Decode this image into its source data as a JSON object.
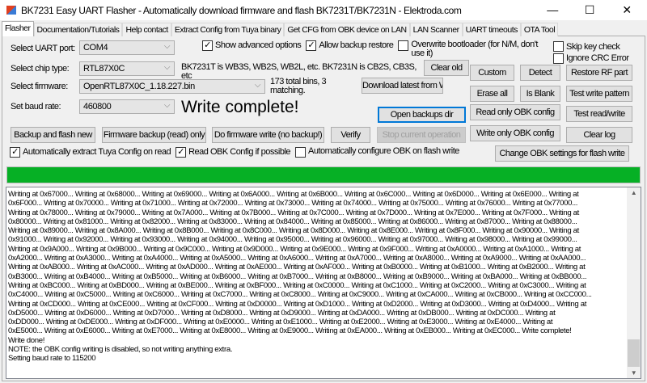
{
  "window": {
    "title": "BK7231 Easy UART Flasher - Automatically download firmware and flash BK7231T/BK7231N  - Elektroda.com",
    "minimize": "—",
    "maximize": "☐",
    "close": "✕"
  },
  "tabs": [
    "Flasher",
    "Documentation/Tutorials",
    "Help contact",
    "Extract Config from Tuya binary",
    "Get CFG from OBK device on LAN",
    "LAN Scanner",
    "UART timeouts",
    "OTA Tool"
  ],
  "form": {
    "uart_label": "Select UART port:",
    "uart_value": "COM4",
    "chip_label": "Select chip type:",
    "chip_value": "RTL87X0C",
    "chip_hint": "BK7231T is WB3S, WB2S, WB2L, etc. BK7231N is CB2S, CB3S, etc",
    "firmware_label": "Select firmware:",
    "firmware_value": "OpenRTL87X0C_1.18.227.bin",
    "bins_info": "173 total bins, 3 matching.",
    "baud_label": "Set baud rate:",
    "baud_value": "460800",
    "status": "Write complete!"
  },
  "options": [
    {
      "label": "Show advanced options",
      "checked": true
    },
    {
      "label": "Allow backup restore",
      "checked": true
    },
    {
      "label": "Overwrite bootloader (for N/M, don't use it)",
      "checked": false
    },
    {
      "label": "Skip key check",
      "checked": false
    },
    {
      "label": "Ignore CRC Error",
      "checked": false
    },
    {
      "label": "Automatically extract Tuya Config on read",
      "checked": true
    },
    {
      "label": "Read OBK Config if possible",
      "checked": true
    },
    {
      "label": "Automatically configure OBK on flash write",
      "checked": false
    }
  ],
  "buttons": {
    "clear_old": "Clear old",
    "download": "Download latest from Web",
    "open_backups": "Open backups dir",
    "custom": "Custom",
    "detect": "Detect",
    "restore_rf": "Restore RF part",
    "erase_all": "Erase all",
    "is_blank": "Is Blank",
    "test_write_pattern": "Test write pattern",
    "read_obk": "Read only OBK config",
    "test_rw": "Test read/write",
    "write_obk": "Write only OBK config",
    "clear_log": "Clear log",
    "backup_flash": "Backup and flash new",
    "fw_backup": "Firmware backup (read) only",
    "fw_write": "Do firmware write (no backup!)",
    "verify": "Verify",
    "stop": "Stop current operation",
    "change_obk": "Change OBK settings for flash write"
  },
  "progress": {
    "percent": 100,
    "color": "#06b025"
  },
  "log": [
    "Writing at 0x67000... Writing at 0x68000... Writing at 0x69000... Writing at 0x6A000... Writing at 0x6B000... Writing at 0x6C000... Writing at 0x6D000... Writing at 0x6E000... Writing at",
    "0x6F000... Writing at 0x70000... Writing at 0x71000... Writing at 0x72000... Writing at 0x73000... Writing at 0x74000... Writing at 0x75000... Writing at 0x76000... Writing at 0x77000...",
    "Writing at 0x78000... Writing at 0x79000... Writing at 0x7A000... Writing at 0x7B000... Writing at 0x7C000... Writing at 0x7D000... Writing at 0x7E000... Writing at 0x7F000... Writing at",
    "0x80000... Writing at 0x81000... Writing at 0x82000... Writing at 0x83000... Writing at 0x84000... Writing at 0x85000... Writing at 0x86000... Writing at 0x87000... Writing at 0x88000...",
    "Writing at 0x89000... Writing at 0x8A000... Writing at 0x8B000... Writing at 0x8C000... Writing at 0x8D000... Writing at 0x8E000... Writing at 0x8F000... Writing at 0x90000... Writing at",
    "0x91000... Writing at 0x92000... Writing at 0x93000... Writing at 0x94000... Writing at 0x95000... Writing at 0x96000... Writing at 0x97000... Writing at 0x98000... Writing at 0x99000...",
    "Writing at 0x9A000... Writing at 0x9B000... Writing at 0x9C000... Writing at 0x9D000... Writing at 0x9E000... Writing at 0x9F000... Writing at 0xA0000... Writing at 0xA1000... Writing at",
    "0xA2000... Writing at 0xA3000... Writing at 0xA4000... Writing at 0xA5000... Writing at 0xA6000... Writing at 0xA7000... Writing at 0xA8000... Writing at 0xA9000... Writing at 0xAA000...",
    "Writing at 0xAB000... Writing at 0xAC000... Writing at 0xAD000... Writing at 0xAE000... Writing at 0xAF000... Writing at 0xB0000... Writing at 0xB1000... Writing at 0xB2000... Writing at",
    "0xB3000... Writing at 0xB4000... Writing at 0xB5000... Writing at 0xB6000... Writing at 0xB7000... Writing at 0xB8000... Writing at 0xB9000... Writing at 0xBA000... Writing at 0xBB000...",
    "Writing at 0xBC000... Writing at 0xBD000... Writing at 0xBE000... Writing at 0xBF000... Writing at 0xC0000... Writing at 0xC1000... Writing at 0xC2000... Writing at 0xC3000... Writing at",
    "0xC4000... Writing at 0xC5000... Writing at 0xC6000... Writing at 0xC7000... Writing at 0xC8000... Writing at 0xC9000... Writing at 0xCA000... Writing at 0xCB000... Writing at 0xCC000...",
    "Writing at 0xCD000... Writing at 0xCE000... Writing at 0xCF000... Writing at 0xD0000... Writing at 0xD1000... Writing at 0xD2000... Writing at 0xD3000... Writing at 0xD4000... Writing at",
    "0xD5000... Writing at 0xD6000... Writing at 0xD7000... Writing at 0xD8000... Writing at 0xD9000... Writing at 0xDA000... Writing at 0xDB000... Writing at 0xDC000... Writing at",
    "0xDD000... Writing at 0xDE000... Writing at 0xDF000... Writing at 0xE0000... Writing at 0xE1000... Writing at 0xE2000... Writing at 0xE3000... Writing at 0xE4000... Writing at",
    "0xE5000... Writing at 0xE6000... Writing at 0xE7000... Writing at 0xE8000... Writing at 0xE9000... Writing at 0xEA000... Writing at 0xEB000... Writing at 0xEC000... Write complete!",
    "Write done!",
    "NOTE: the OBK config writing is disabled, so not writing anything extra.",
    "Setting baud rate to 115200"
  ]
}
